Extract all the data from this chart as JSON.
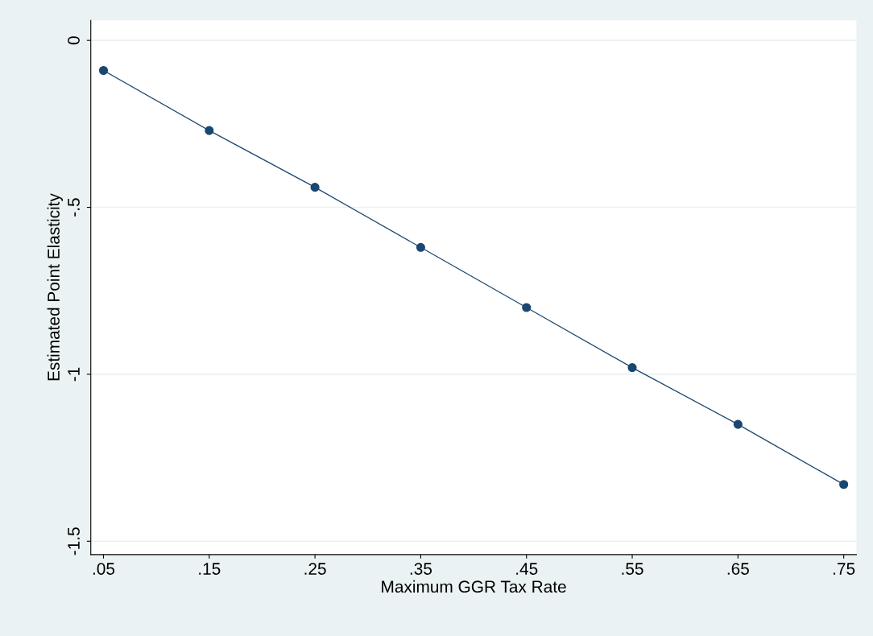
{
  "chart_data": {
    "type": "line",
    "xlabel": "Maximum GGR Tax Rate",
    "ylabel": "Estimated Point Elasticity",
    "x": [
      0.05,
      0.15,
      0.25,
      0.35,
      0.45,
      0.55,
      0.65,
      0.75
    ],
    "series": [
      {
        "color": "#1a476f",
        "values": [
          -0.09,
          -0.27,
          -0.44,
          -0.62,
          -0.8,
          -0.98,
          -1.15,
          -1.33
        ]
      }
    ],
    "xlim": [
      0.038,
      0.762
    ],
    "ylim": [
      -1.54,
      0.06
    ],
    "xticks": [
      {
        "value": 0.05,
        "label": ".05"
      },
      {
        "value": 0.15,
        "label": ".15"
      },
      {
        "value": 0.25,
        "label": ".25"
      },
      {
        "value": 0.35,
        "label": ".35"
      },
      {
        "value": 0.45,
        "label": ".45"
      },
      {
        "value": 0.55,
        "label": ".55"
      },
      {
        "value": 0.65,
        "label": ".65"
      },
      {
        "value": 0.75,
        "label": ".75"
      }
    ],
    "yticks": [
      {
        "value": -1.5,
        "label": "-1.5"
      },
      {
        "value": -1,
        "label": "-1"
      },
      {
        "value": -0.5,
        "label": "-.5"
      },
      {
        "value": 0,
        "label": "0"
      }
    ],
    "grid": "y",
    "marker": "circle",
    "line_style": "solid"
  }
}
